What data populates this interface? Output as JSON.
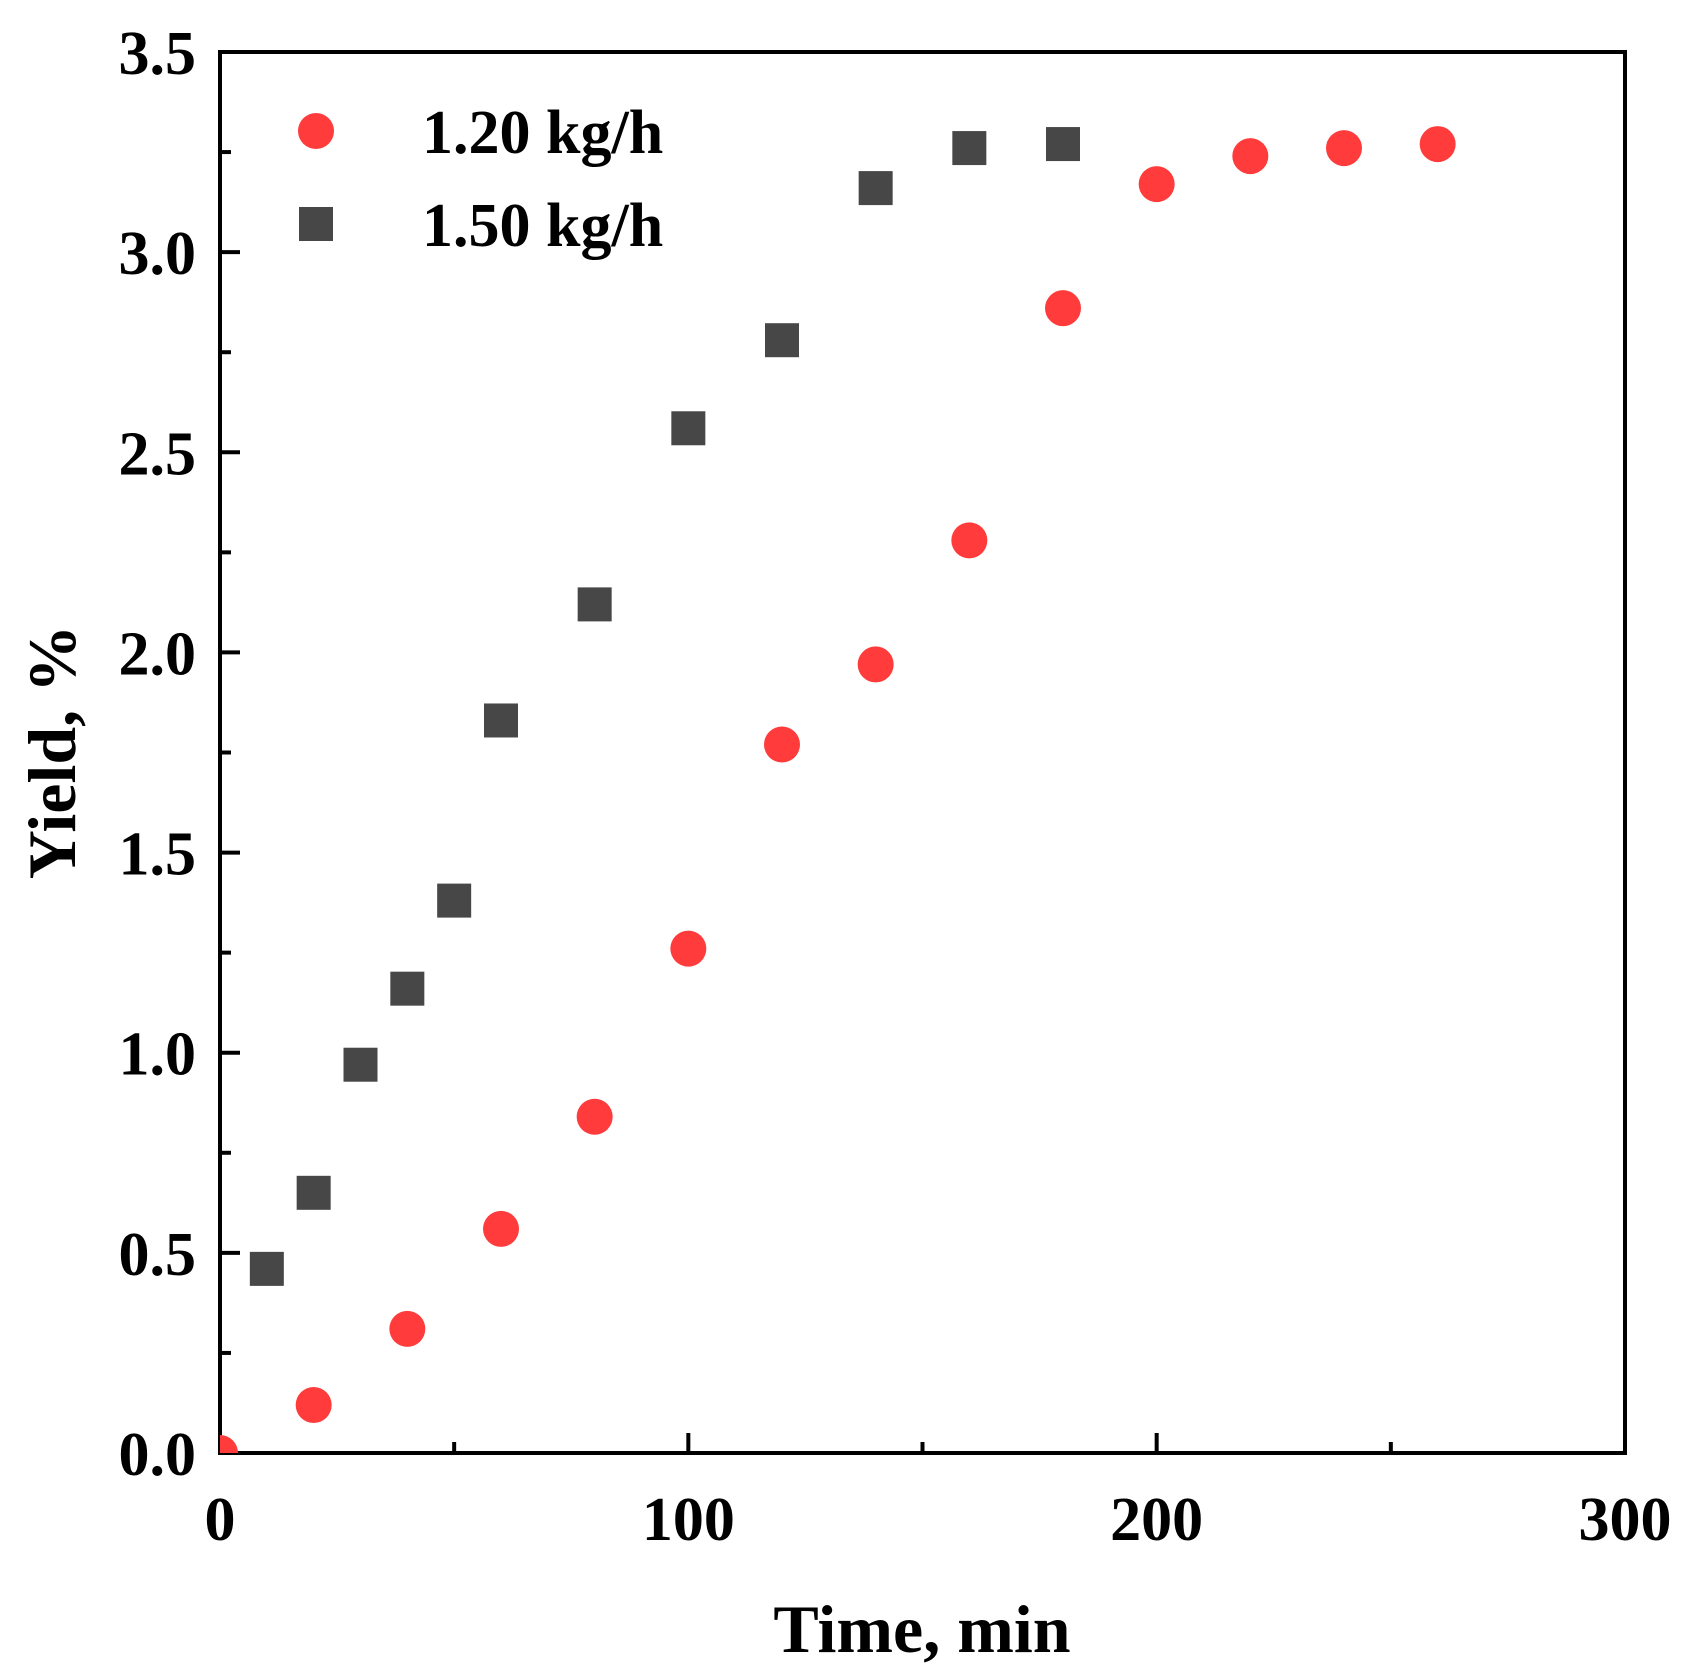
{
  "chart_data": {
    "type": "scatter",
    "xlabel": "Time, min",
    "ylabel": "Yield, %",
    "xlim": [
      0,
      300
    ],
    "ylim": [
      0,
      3.5
    ],
    "x_ticks": [
      0,
      100,
      200,
      300
    ],
    "x_tick_labels": [
      "0",
      "100",
      "200",
      "300"
    ],
    "x_minor_ticks": [
      50,
      150,
      250
    ],
    "y_ticks": [
      0,
      0.5,
      1.0,
      1.5,
      2.0,
      2.5,
      3.0,
      3.5
    ],
    "y_tick_labels": [
      "0.0",
      "0.5",
      "1.0",
      "1.5",
      "2.0",
      "2.5",
      "3.0",
      "3.5"
    ],
    "y_minor_ticks": [
      0.25,
      0.75,
      1.25,
      1.75,
      2.25,
      2.75,
      3.25
    ],
    "grid": false,
    "legend_position": "top-left",
    "series": [
      {
        "name": "1.20 kg/h",
        "marker": "circle",
        "color": "#ff3b3b",
        "x": [
          0,
          20,
          40,
          60,
          80,
          100,
          120,
          140,
          160,
          180,
          200,
          220,
          240,
          260
        ],
        "y": [
          0.0,
          0.12,
          0.31,
          0.56,
          0.84,
          1.26,
          1.77,
          1.97,
          2.28,
          2.86,
          3.17,
          3.24,
          3.26,
          3.27
        ]
      },
      {
        "name": "1.50 kg/h",
        "marker": "square",
        "color": "#474747",
        "x": [
          10,
          20,
          30,
          40,
          50,
          60,
          80,
          100,
          120,
          140,
          160,
          180
        ],
        "y": [
          0.46,
          0.65,
          0.97,
          1.16,
          1.38,
          1.83,
          2.12,
          2.56,
          2.78,
          3.16,
          3.26,
          3.27
        ]
      }
    ]
  }
}
